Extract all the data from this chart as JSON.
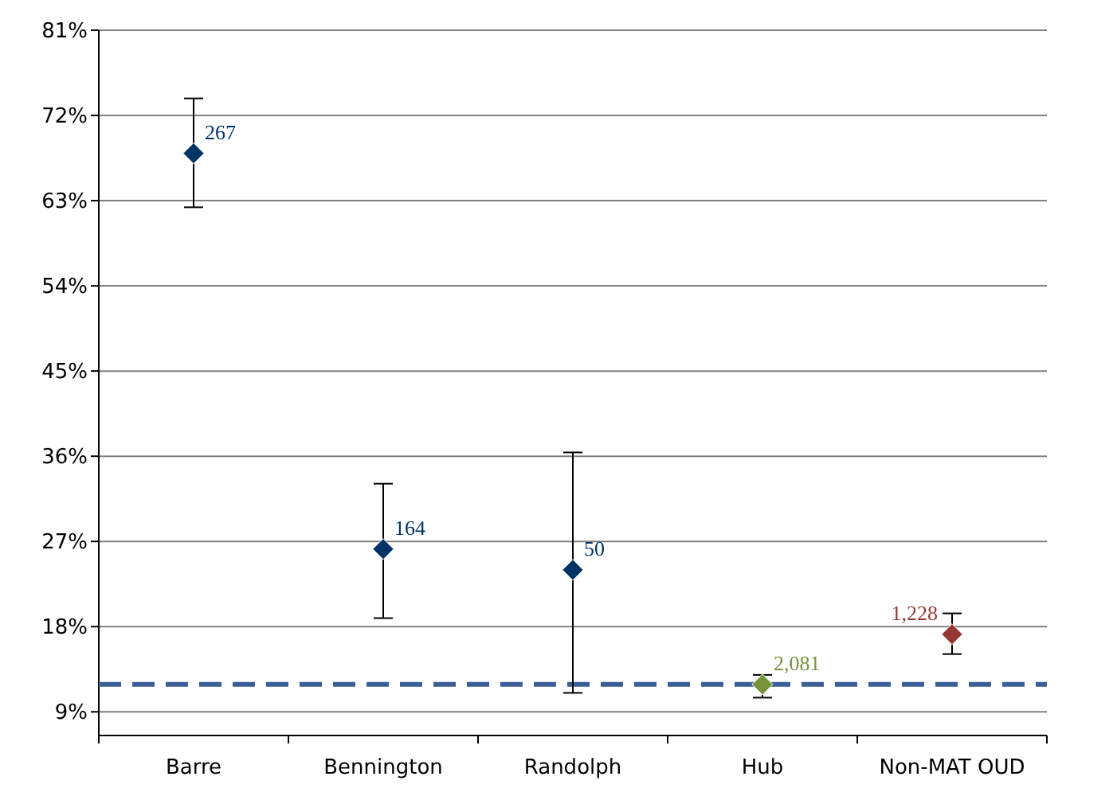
{
  "chart_data": {
    "type": "scatter",
    "categories": [
      "Barre",
      "Bennington",
      "Randolph",
      "Hub",
      "Non-MAT OUD"
    ],
    "values": [
      68.0,
      26.2,
      24.0,
      11.9,
      17.2
    ],
    "errors": [
      [
        62.3,
        73.8
      ],
      [
        18.9,
        33.1
      ],
      [
        11.0,
        36.4
      ],
      [
        10.5,
        12.9
      ],
      [
        15.1,
        19.4
      ]
    ],
    "colors": [
      "#003366",
      "#003366",
      "#003366",
      "#77933c",
      "#953735"
    ],
    "marker": "diamond",
    "ylim": [
      6.5,
      81
    ],
    "yticks": [
      {
        "value": 9,
        "label": "9%"
      },
      {
        "value": 18,
        "label": "18%"
      },
      {
        "value": 27,
        "label": "27%"
      },
      {
        "value": 36,
        "label": "36%"
      },
      {
        "value": 45,
        "label": "45%"
      },
      {
        "value": 54,
        "label": "54%"
      },
      {
        "value": 63,
        "label": "63%"
      },
      {
        "value": 72,
        "label": "72%"
      },
      {
        "value": 81,
        "label": "81%"
      }
    ],
    "grid": "y",
    "ref_lines": [
      {
        "axis": "y",
        "value": 11.9,
        "color": "#3a5f96",
        "line_style": "dashed"
      }
    ],
    "annotations": [
      {
        "text": "267",
        "x": "Barre",
        "y": 68.0
      },
      {
        "text": "164",
        "x": "Bennington",
        "y": 26.2
      },
      {
        "text": "50",
        "x": "Randolph",
        "y": 24.0
      },
      {
        "text": "2,081",
        "x": "Hub",
        "y": 11.9
      },
      {
        "text": "1,228",
        "x": "Non-MAT OUD",
        "y": 17.2
      }
    ]
  }
}
